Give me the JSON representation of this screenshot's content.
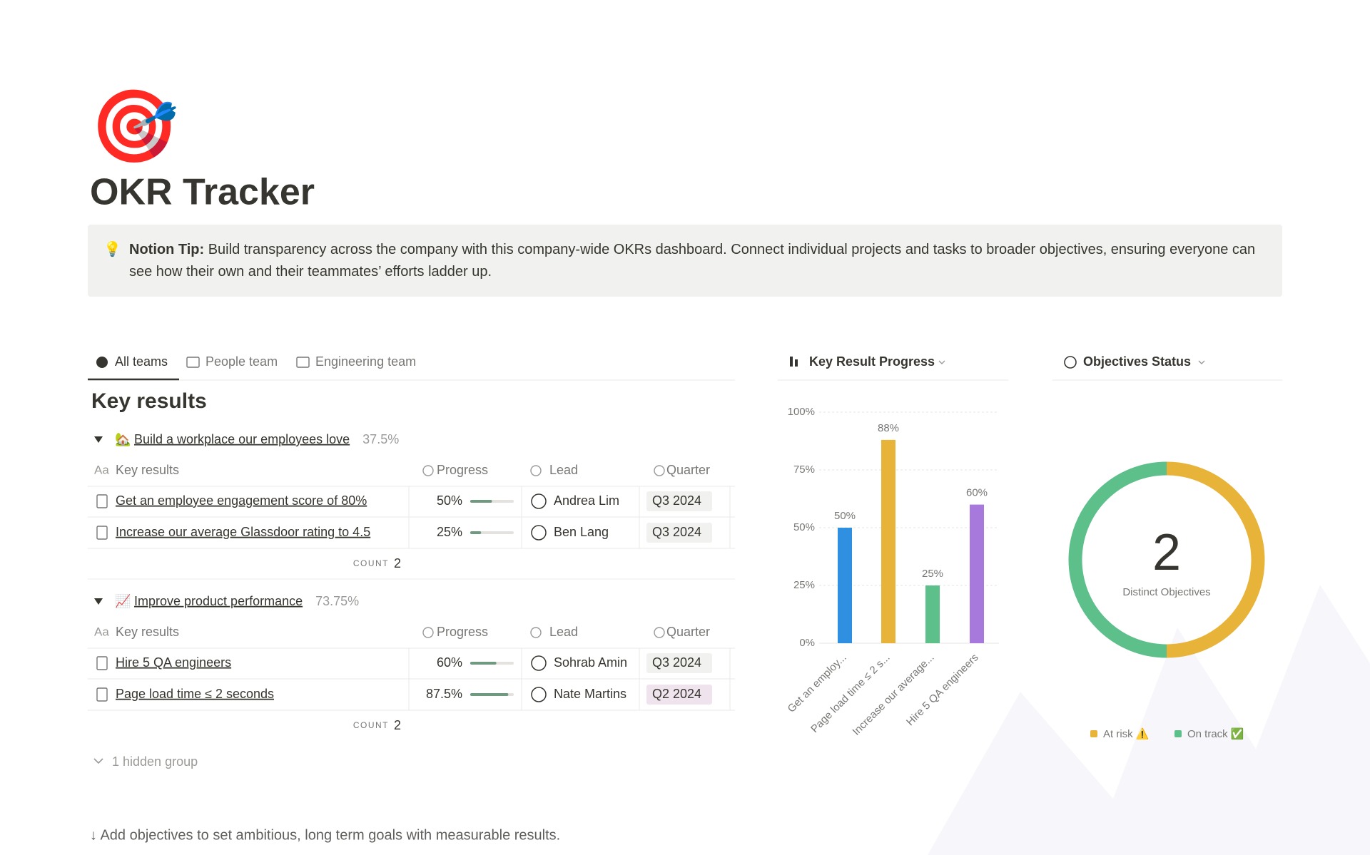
{
  "page": {
    "icon": "🎯",
    "title": "OKR Tracker"
  },
  "tip": {
    "icon": "💡",
    "label": "Notion Tip:",
    "text": "Build transparency across the company with this company-wide OKRs dashboard. Connect individual projects and tasks to broader objectives, ensuring everyone can see how their own and their teammates’ efforts ladder up."
  },
  "tabs": [
    "All teams",
    "People team",
    "Engineering team"
  ],
  "section_title": "Key results",
  "title_column_icon": "Aa",
  "columns": [
    "Key results",
    "Progress",
    "Lead",
    "Quarter"
  ],
  "groups": [
    {
      "icon": "🏡",
      "name": "Build a workplace our employees love",
      "summary": "37.5%",
      "rows": [
        {
          "name": "Get an employee engagement score of 80%",
          "progress": 50,
          "progress_label": "50%",
          "lead": "Andrea Lim",
          "quarter": "Q3 2024",
          "quarter_color": "#f1f1ef"
        },
        {
          "name": "Increase our average Glassdoor rating to 4.5",
          "progress": 25,
          "progress_label": "25%",
          "lead": "Ben Lang",
          "quarter": "Q3 2024",
          "quarter_color": "#f1f1ef"
        }
      ],
      "count_label": "COUNT",
      "count": 2
    },
    {
      "icon": "📈",
      "name": "Improve product performance",
      "summary": "73.75%",
      "rows": [
        {
          "name": "Hire 5 QA engineers",
          "progress": 60,
          "progress_label": "60%",
          "lead": "Sohrab Amin",
          "quarter": "Q3 2024",
          "quarter_color": "#f1f1ef"
        },
        {
          "name": "Page load time ≤ 2 seconds",
          "progress": 87.5,
          "progress_label": "87.5%",
          "lead": "Nate Martins",
          "quarter": "Q2 2024",
          "quarter_color": "#efe3ee"
        }
      ],
      "count_label": "COUNT",
      "count": 2
    }
  ],
  "hidden_groups": "1 hidden group",
  "footer": "↓ Add objectives to set ambitious, long term goals with measurable results.",
  "chart_data": [
    {
      "type": "bar",
      "title": "Key Result Progress",
      "categories": [
        "Get an employ...",
        "Page load time ≤ 2 s...",
        "Increase our average...",
        "Hire 5 QA engineers"
      ],
      "values": [
        50,
        88,
        25,
        60
      ],
      "value_labels": [
        "50%",
        "88%",
        "25%",
        "60%"
      ],
      "colors": [
        "#2f8fe0",
        "#e8b339",
        "#5dbf8a",
        "#a879dc"
      ],
      "ylim": [
        0,
        100
      ],
      "yticks": [
        {
          "value": 0,
          "label": "0%"
        },
        {
          "value": 25,
          "label": "25%"
        },
        {
          "value": 50,
          "label": "50%"
        },
        {
          "value": 75,
          "label": "75%"
        },
        {
          "value": 100,
          "label": "100%"
        }
      ],
      "grid": true
    },
    {
      "type": "donut",
      "title": "Objectives Status",
      "center_value": 2,
      "center_label": "Distinct Objectives",
      "categories": [
        "At risk ⚠️",
        "On track ✅"
      ],
      "values": [
        1,
        1
      ],
      "colors": [
        "#e8b339",
        "#5dbf8a"
      ]
    }
  ]
}
